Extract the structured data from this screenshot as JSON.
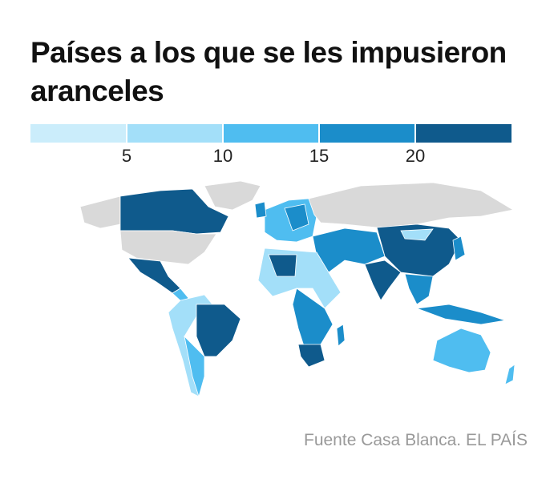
{
  "chart_data": {
    "type": "choropleth",
    "title": "Países a los que se les impusieron aranceles",
    "legend": {
      "xlim": [
        0,
        25
      ],
      "xticks": [
        5,
        10,
        15,
        20
      ],
      "colors": [
        "#cbedfb",
        "#a3dff9",
        "#4fbdf0",
        "#1b8dca",
        "#0f5a8c"
      ]
    },
    "source": "Fuente Casa Blanca. EL PAÍS"
  }
}
